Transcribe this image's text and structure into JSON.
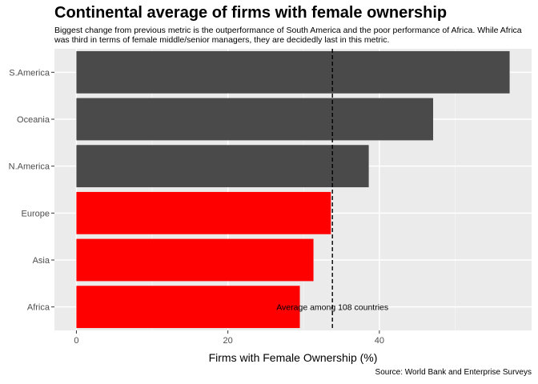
{
  "chart_data": {
    "type": "bar",
    "orientation": "horizontal",
    "title": "Continental average of firms with female ownership",
    "subtitle": "Biggest change from previous metric is the outperformance of South America and the poor performance of Africa. While Africa was third in terms of female middle/senior managers, they are decidedly last in this metric.",
    "xlabel": "Firms with Female Ownership (%)",
    "ylabel": "",
    "caption": "Source: World Bank and Enterprise Surveys",
    "categories": [
      "S.America",
      "Oceania",
      "N.America",
      "Europe",
      "Asia",
      "Africa"
    ],
    "values": [
      57.2,
      47.1,
      38.6,
      33.6,
      31.3,
      29.5
    ],
    "colors": [
      "#4a4a4a",
      "#4a4a4a",
      "#4a4a4a",
      "#ff0000",
      "#ff0000",
      "#ff0000"
    ],
    "xlim": [
      -2.9,
      60.1
    ],
    "xticks": [
      0,
      20,
      40
    ],
    "reference_line": {
      "value": 33.8,
      "label": "Average among 108 countries"
    },
    "grid": true,
    "legend": "none"
  }
}
